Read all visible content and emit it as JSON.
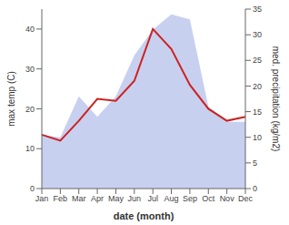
{
  "chart_data": {
    "type": "line",
    "xlabel": "date (month)",
    "ylabel": "max temp (C)",
    "y2label": "med. precipitation (kg/m2)",
    "categories": [
      "Jan",
      "Feb",
      "Mar",
      "Apr",
      "May",
      "Jun",
      "Jul",
      "Aug",
      "Sep",
      "Oct",
      "Nov",
      "Dec"
    ],
    "series": [
      {
        "type": "area",
        "axis": "y2",
        "color": "#c8d0f0",
        "values": [
          10.5,
          10.0,
          18.0,
          14.0,
          18.0,
          26.0,
          31.0,
          34.0,
          33.0,
          16.0,
          13.0,
          13.0
        ]
      },
      {
        "type": "line",
        "color": "#cc2222",
        "values": [
          13.5,
          12.0,
          17.0,
          22.5,
          22.0,
          27.0,
          40.0,
          35.0,
          26.0,
          20.0,
          17.0,
          18.0
        ]
      }
    ],
    "ylim": [
      0,
      45
    ],
    "yticks": [
      0,
      10,
      20,
      30,
      40
    ],
    "y2lim": [
      0,
      35
    ],
    "y2ticks": [
      0,
      5,
      10,
      15,
      20,
      25,
      30,
      35
    ],
    "grid": false
  }
}
